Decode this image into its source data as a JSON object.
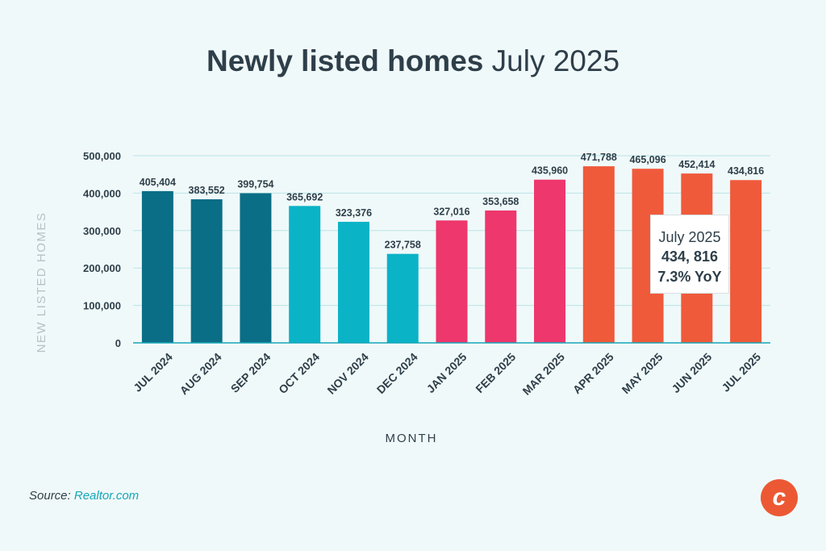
{
  "title": {
    "bold": "Newly listed homes",
    "regular": "July 2025"
  },
  "source": {
    "label": "Source: ",
    "link": "Realtor.com"
  },
  "logo": {
    "letter": "c"
  },
  "callout": {
    "line1": "July 2025",
    "line2": "434, 816",
    "line3": "7.3% YoY"
  },
  "chart_data": {
    "type": "bar",
    "title": "Newly listed homes July 2025",
    "xlabel": "MONTH",
    "ylabel": "NEW LISTED HOMES",
    "ylim": [
      0,
      500000
    ],
    "yticks": [
      0,
      100000,
      200000,
      300000,
      400000,
      500000
    ],
    "ytick_labels": [
      "0",
      "100,000",
      "200,000",
      "300,000",
      "400,000",
      "500,000"
    ],
    "grid": true,
    "categories": [
      "JUL 2024",
      "AUG 2024",
      "SEP 2024",
      "OCT 2024",
      "NOV 2024",
      "DEC 2024",
      "JAN 2025",
      "FEB 2025",
      "MAR 2025",
      "APR 2025",
      "MAY 2025",
      "JUN 2025",
      "JUL 2025"
    ],
    "values": [
      405404,
      383552,
      399754,
      365692,
      323376,
      237758,
      327016,
      353658,
      435960,
      471788,
      465096,
      452414,
      434816
    ],
    "value_labels": [
      "405,404",
      "383,552",
      "399,754",
      "365,692",
      "323,376",
      "237,758",
      "327,016",
      "353,658",
      "435,960",
      "471,788",
      "465,096",
      "452,414",
      "434,816"
    ],
    "bar_colors": [
      "#0a6e86",
      "#0a6e86",
      "#0a6e86",
      "#0bb3c7",
      "#0bb3c7",
      "#0bb3c7",
      "#ee376c",
      "#ee376c",
      "#ee376c",
      "#ef5a3b",
      "#ef5a3b",
      "#ef5a3b",
      "#ef5a3b"
    ]
  },
  "colors": {
    "background": "#f0f9f9",
    "text": "#2e3f4a",
    "grid": "#b9e4e8",
    "axis": "#14a6b8",
    "axis_label": "#b6c2c8"
  }
}
